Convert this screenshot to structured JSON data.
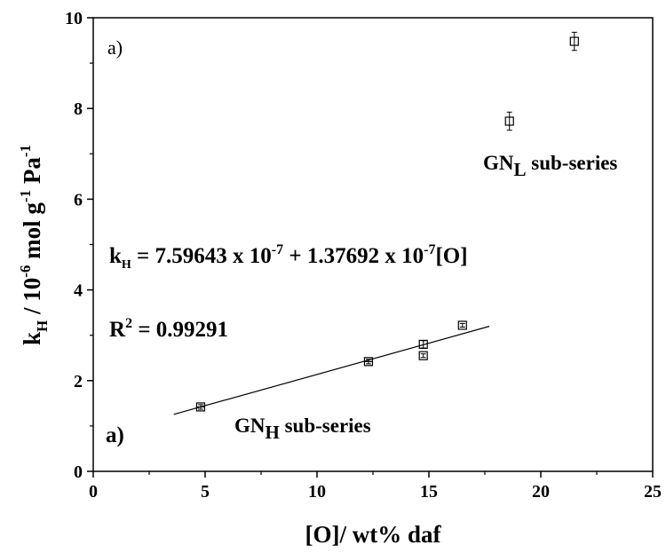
{
  "chart_data": {
    "type": "scatter",
    "xlabel": "[O]/ wt% daf",
    "ylabel": {
      "base": "k",
      "base_sub": "H",
      "mid": " / 10",
      "mid_sup": "-6",
      "unit": " mol g",
      "unit_sup": "-1",
      "unit2": " Pa",
      "unit2_sup": "-1"
    },
    "xlim": [
      0,
      25
    ],
    "ylim": [
      0,
      10
    ],
    "x_ticks": [
      "0",
      "5",
      "10",
      "15",
      "20",
      "25"
    ],
    "y_ticks": [
      "0",
      "2",
      "4",
      "6",
      "8",
      "10"
    ],
    "x_tick_values": [
      0,
      5,
      10,
      15,
      20,
      25
    ],
    "y_tick_values": [
      0,
      2,
      4,
      6,
      8,
      10
    ],
    "x_minor_step": 2.5,
    "y_minor_step": 1,
    "grid": false,
    "points": [
      {
        "x": 4.8,
        "y": 1.42,
        "xerr": 0.2,
        "yerr": 0.05
      },
      {
        "x": 12.3,
        "y": 2.42,
        "xerr": 0.2,
        "yerr": 0.05
      },
      {
        "x": 14.75,
        "y": 2.55,
        "xerr": 0.0,
        "yerr": 0.04
      },
      {
        "x": 14.75,
        "y": 2.8,
        "xerr": 0.0,
        "yerr": 0.08
      },
      {
        "x": 16.5,
        "y": 3.22,
        "xerr": 0.0,
        "yerr": 0.04
      },
      {
        "x": 18.6,
        "y": 7.72,
        "xerr": 0.0,
        "yerr": 0.2
      },
      {
        "x": 21.5,
        "y": 9.48,
        "xerr": 0.0,
        "yerr": 0.2
      }
    ],
    "fit_line": {
      "x_start": 3.6,
      "x_end": 17.7,
      "intercept": 0.7596,
      "slope": 0.1377
    },
    "annotations": {
      "panel_label_top": "a)",
      "panel_label_bottom": "a)",
      "gn_l": {
        "base": "GN",
        "sub": "L",
        "rest": " sub-series"
      },
      "gn_h": {
        "base": "GN",
        "sub": "H",
        "rest": " sub-series"
      },
      "equation": {
        "k": "k",
        "k_sub": "H",
        "part1": " = 7.59643 x 10",
        "sup1": "-7",
        "part2": " + 1.37692 x 10",
        "sup2": "-7",
        "part3": "[O]"
      },
      "r2": {
        "base": "R",
        "sup": "2",
        "rest": " = 0.99291"
      }
    }
  }
}
